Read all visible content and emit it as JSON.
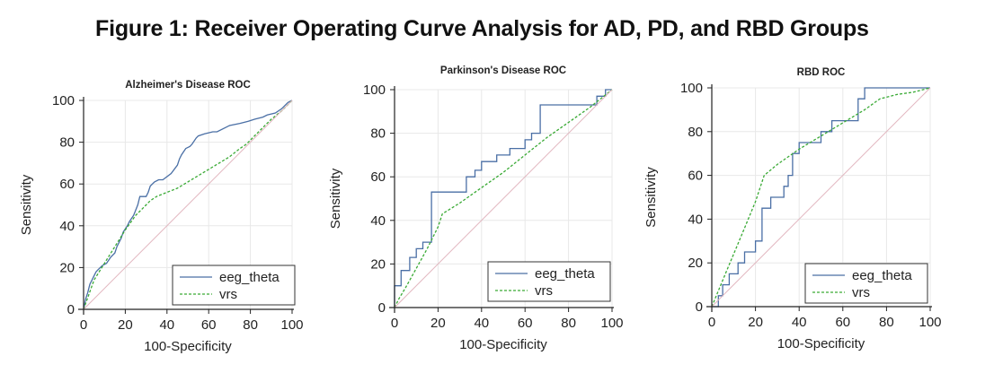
{
  "figure_title": "Figure 1: Receiver Operating Curve Analysis for AD, PD, and RBD Groups",
  "colors": {
    "eeg_theta": "#4a6fa5",
    "vrs": "#3aaa35",
    "diagonal": "#e2b6bf",
    "grid": "#e8e8e8",
    "axis": "#222222"
  },
  "chart_data": [
    {
      "type": "line",
      "title": "Alzheimer's Disease ROC",
      "xlabel": "100-Specificity",
      "ylabel": "Sensitivity",
      "xlim": [
        0,
        100
      ],
      "ylim": [
        0,
        100
      ],
      "xticks": [
        0,
        20,
        40,
        60,
        80,
        100
      ],
      "yticks": [
        0,
        20,
        40,
        60,
        80,
        100
      ],
      "grid": true,
      "legend": "bottom-right",
      "series": [
        {
          "name": "eeg_theta",
          "style": "solid",
          "x": [
            0,
            1,
            2,
            3,
            4,
            5,
            6,
            7,
            9,
            11,
            13,
            15,
            16,
            18,
            19,
            21,
            22,
            24,
            26,
            27,
            30,
            31,
            32,
            34,
            36,
            38,
            42,
            45,
            46,
            47,
            49,
            51,
            52,
            54,
            55,
            58,
            62,
            64,
            68,
            70,
            75,
            79,
            82,
            86,
            88,
            92,
            95,
            98,
            100
          ],
          "y": [
            0,
            5,
            8,
            12,
            14,
            16,
            18,
            19,
            21,
            22,
            25,
            27,
            30,
            34,
            37,
            40,
            42,
            45,
            50,
            54,
            54,
            56,
            59,
            61,
            62,
            62,
            65,
            69,
            72,
            74,
            77,
            78,
            79,
            82,
            83,
            84,
            85,
            85,
            87,
            88,
            89,
            90,
            91,
            92,
            93,
            94,
            96,
            99,
            100
          ]
        },
        {
          "name": "vrs",
          "style": "dashed",
          "x": [
            0,
            5,
            10,
            15,
            20,
            25,
            28,
            30,
            32,
            35,
            40,
            45,
            50,
            55,
            60,
            65,
            70,
            75,
            78,
            82,
            86,
            90,
            95,
            100
          ],
          "y": [
            0,
            14,
            22,
            30,
            38,
            45,
            48,
            50,
            52,
            54,
            56,
            58,
            61,
            64,
            67,
            70,
            73,
            77,
            79,
            83,
            87,
            91,
            95,
            100
          ]
        },
        {
          "name": "",
          "style": "reference",
          "x": [
            0,
            100
          ],
          "y": [
            0,
            100
          ]
        }
      ]
    },
    {
      "type": "line",
      "title": "Parkinson's Disease ROC",
      "xlabel": "100-Specificity",
      "ylabel": "Sensitivity",
      "xlim": [
        0,
        100
      ],
      "ylim": [
        0,
        100
      ],
      "xticks": [
        0,
        20,
        40,
        60,
        80,
        100
      ],
      "yticks": [
        0,
        20,
        40,
        60,
        80,
        100
      ],
      "grid": true,
      "legend": "bottom-right",
      "series": [
        {
          "name": "eeg_theta",
          "style": "solid",
          "x": [
            0,
            0,
            3,
            3,
            7,
            7,
            10,
            10,
            13,
            13,
            17,
            17,
            33,
            33,
            37,
            37,
            40,
            40,
            47,
            47,
            53,
            53,
            60,
            60,
            63,
            63,
            67,
            67,
            93,
            93,
            97,
            97,
            100
          ],
          "y": [
            0,
            10,
            10,
            17,
            17,
            23,
            23,
            27,
            27,
            30,
            30,
            53,
            53,
            60,
            60,
            63,
            63,
            67,
            67,
            70,
            70,
            73,
            73,
            77,
            77,
            80,
            80,
            93,
            93,
            97,
            97,
            100,
            100
          ]
        },
        {
          "name": "vrs",
          "style": "dashed",
          "x": [
            0,
            2,
            5,
            10,
            15,
            20,
            22,
            30,
            40,
            50,
            60,
            70,
            80,
            90,
            100
          ],
          "y": [
            0,
            4,
            9,
            18,
            27,
            37,
            43,
            48,
            55,
            62,
            70,
            78,
            85,
            92,
            100
          ]
        },
        {
          "name": "",
          "style": "reference",
          "x": [
            0,
            100
          ],
          "y": [
            0,
            100
          ]
        }
      ]
    },
    {
      "type": "line",
      "title": "RBD ROC",
      "xlabel": "100-Specificity",
      "ylabel": "Sensitivity",
      "xlim": [
        0,
        100
      ],
      "ylim": [
        0,
        100
      ],
      "xticks": [
        0,
        20,
        40,
        60,
        80,
        100
      ],
      "yticks": [
        0,
        20,
        40,
        60,
        80,
        100
      ],
      "grid": true,
      "legend": "bottom-right",
      "series": [
        {
          "name": "eeg_theta",
          "style": "solid",
          "x": [
            0,
            3,
            3,
            5,
            5,
            8,
            8,
            12,
            12,
            15,
            15,
            20,
            20,
            23,
            23,
            27,
            27,
            33,
            33,
            35,
            35,
            37,
            37,
            40,
            40,
            45,
            45,
            50,
            50,
            55,
            55,
            60,
            60,
            67,
            67,
            70,
            70,
            100
          ],
          "y": [
            0,
            0,
            5,
            5,
            10,
            10,
            15,
            15,
            20,
            20,
            25,
            25,
            30,
            30,
            45,
            45,
            50,
            50,
            55,
            55,
            60,
            60,
            70,
            70,
            75,
            75,
            75,
            75,
            80,
            80,
            85,
            85,
            85,
            85,
            95,
            95,
            100,
            100
          ]
        },
        {
          "name": "vrs",
          "style": "dashed",
          "x": [
            0,
            5,
            10,
            15,
            20,
            24,
            30,
            40,
            50,
            60,
            70,
            77,
            85,
            92,
            100
          ],
          "y": [
            0,
            12,
            24,
            36,
            48,
            60,
            65,
            72,
            78,
            84,
            90,
            95,
            97,
            98,
            100
          ]
        },
        {
          "name": "",
          "style": "reference",
          "x": [
            0,
            100
          ],
          "y": [
            0,
            100
          ]
        }
      ]
    }
  ]
}
